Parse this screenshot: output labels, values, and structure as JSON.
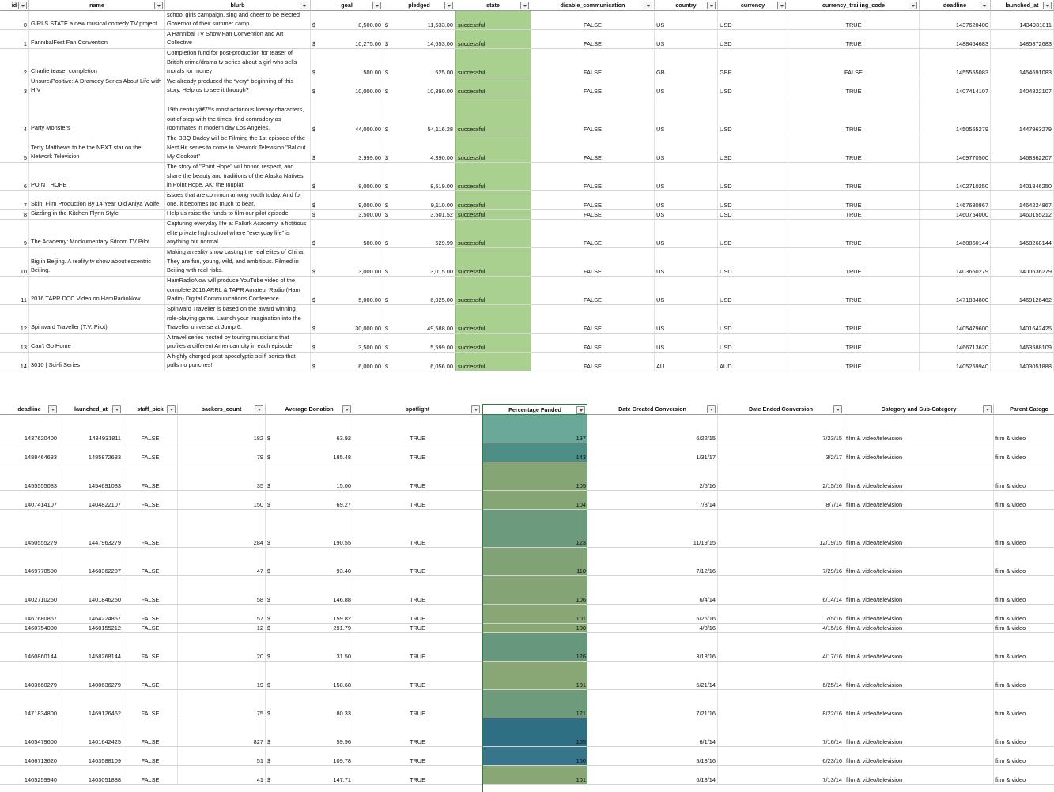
{
  "top_headers": [
    "id",
    "name",
    "blurb",
    "goal",
    "pledged",
    "state",
    "disable_communication",
    "country",
    "currency",
    "currency_trailing_code",
    "deadline",
    "launched_at"
  ],
  "bottom_headers": [
    "deadline",
    "launched_at",
    "staff_pick",
    "backers_count",
    "Average Donation",
    "spotlight",
    "Percentage Funded",
    "Date Created Conversion",
    "Date Ended Conversion",
    "Category and Sub-Category",
    "Parent Catego"
  ],
  "currency_symbol": "$",
  "rows": [
    {
      "id": "0",
      "name": "GIRLS STATE a new musical comedy TV project",
      "blurb": "In this new TV show \"All Politics is Vocal\" as high school girls campaign, sing and cheer to be elected Governor of their summer camp.",
      "goal": "8,500.00",
      "pledged": "11,633.00",
      "state": "successful",
      "disable_communication": "FALSE",
      "country": "US",
      "currency": "USD",
      "currency_trailing_code": "TRUE",
      "deadline": "1437620400",
      "launched_at": "1434931811",
      "staff_pick": "FALSE",
      "backers_count": "182",
      "avg_donation": "63.92",
      "spotlight": "TRUE",
      "pct_funded": "137",
      "pct_color": "#6aa99a",
      "date_created": "6/22/15",
      "date_ended": "7/23/15",
      "category": "film & video/television",
      "parent": "film & video"
    },
    {
      "id": "1",
      "name": "FannibalFest Fan Convention",
      "blurb": "A Hannibal TV Show Fan Convention and Art Collective",
      "goal": "10,275.00",
      "pledged": "14,653.00",
      "state": "successful",
      "disable_communication": "FALSE",
      "country": "US",
      "currency": "USD",
      "currency_trailing_code": "TRUE",
      "deadline": "1488464683",
      "launched_at": "1485872683",
      "staff_pick": "FALSE",
      "backers_count": "79",
      "avg_donation": "185.48",
      "spotlight": "TRUE",
      "pct_funded": "143",
      "pct_color": "#4d8f86",
      "date_created": "1/31/17",
      "date_ended": "3/2/17",
      "category": "film & video/television",
      "parent": "film & video"
    },
    {
      "id": "2",
      "name": "Charlie teaser completion",
      "blurb": "Completion fund for post-production for teaser of British crime/drama tv series about a girl who sells morals for money",
      "goal": "500.00",
      "pledged": "525.00",
      "state": "successful",
      "disable_communication": "FALSE",
      "country": "GB",
      "currency": "GBP",
      "currency_trailing_code": "FALSE",
      "deadline": "1455555083",
      "launched_at": "1454691083",
      "staff_pick": "FALSE",
      "backers_count": "35",
      "avg_donation": "15.00",
      "spotlight": "TRUE",
      "pct_funded": "105",
      "pct_color": "#86a575",
      "date_created": "2/5/16",
      "date_ended": "2/15/16",
      "category": "film & video/television",
      "parent": "film & video"
    },
    {
      "id": "3",
      "name": "Unsure/Positive: A Dramedy Series About Life with HIV",
      "blurb": "We already produced the *very* beginning of this story. Help us to see it through?",
      "goal": "10,000.00",
      "pledged": "10,390.00",
      "state": "successful",
      "disable_communication": "FALSE",
      "country": "US",
      "currency": "USD",
      "currency_trailing_code": "TRUE",
      "deadline": "1407414107",
      "launched_at": "1404822107",
      "staff_pick": "FALSE",
      "backers_count": "150",
      "avg_donation": "69.27",
      "spotlight": "TRUE",
      "pct_funded": "104",
      "pct_color": "#86a575",
      "date_created": "7/8/14",
      "date_ended": "8/7/14",
      "category": "film & video/television",
      "parent": "film & video"
    },
    {
      "id": "4",
      "name": "Party Monsters",
      "blurb": "19th centuryâ€™s most notorious literary characters, out of step with the times, find comradery as roommates in modern day Los Angeles.",
      "goal": "44,000.00",
      "pledged": "54,116.28",
      "state": "successful",
      "disable_communication": "FALSE",
      "country": "US",
      "currency": "USD",
      "currency_trailing_code": "TRUE",
      "deadline": "1450555279",
      "launched_at": "1447963279",
      "staff_pick": "FALSE",
      "backers_count": "284",
      "avg_donation": "190.55",
      "spotlight": "TRUE",
      "pct_funded": "123",
      "pct_color": "#6b9a7c",
      "date_created": "11/19/15",
      "date_ended": "12/19/15",
      "category": "film & video/television",
      "parent": "film & video"
    },
    {
      "id": "5",
      "name": "Terry Matthews to be the NEXT star on the Network Television",
      "blurb": "The BBQ Daddy will be Filming the 1st episode of the Next Hit series to come to Network Television \"Ballout My Cookout\"",
      "goal": "3,999.00",
      "pledged": "4,390.00",
      "state": "successful",
      "disable_communication": "FALSE",
      "country": "US",
      "currency": "USD",
      "currency_trailing_code": "TRUE",
      "deadline": "1469770500",
      "launched_at": "1468362207",
      "staff_pick": "FALSE",
      "backers_count": "47",
      "avg_donation": "93.40",
      "spotlight": "TRUE",
      "pct_funded": "110",
      "pct_color": "#80a275",
      "date_created": "7/12/16",
      "date_ended": "7/29/16",
      "category": "film & video/television",
      "parent": "film & video"
    },
    {
      "id": "6",
      "name": "POINT HOPE",
      "blurb": "The story of \"Point Hope\" will honor, respect, and share the beauty and traditions of the Alaska Natives in Point Hope, AK: the Inupiat",
      "goal": "8,000.00",
      "pledged": "8,519.00",
      "state": "successful",
      "disable_communication": "FALSE",
      "country": "US",
      "currency": "USD",
      "currency_trailing_code": "TRUE",
      "deadline": "1402710250",
      "launched_at": "1401846250",
      "staff_pick": "FALSE",
      "backers_count": "58",
      "avg_donation": "146.88",
      "spotlight": "TRUE",
      "pct_funded": "106",
      "pct_color": "#84a475",
      "date_created": "6/4/14",
      "date_ended": "6/14/14",
      "category": "film & video/television",
      "parent": "film & video"
    },
    {
      "id": "7",
      "name": "Skin: Film Production By 14 Year Old Aniya Wolfe",
      "blurb": "Secrets bond three unfortunate teens who are facing issues that are common among youth today. And for one, it becomes too much to bear.",
      "goal": "9,000.00",
      "pledged": "9,110.00",
      "state": "successful",
      "disable_communication": "FALSE",
      "country": "US",
      "currency": "USD",
      "currency_trailing_code": "TRUE",
      "deadline": "1467680867",
      "launched_at": "1464224867",
      "staff_pick": "FALSE",
      "backers_count": "57",
      "avg_donation": "159.82",
      "spotlight": "TRUE",
      "pct_funded": "101",
      "pct_color": "#88a774",
      "date_created": "5/26/16",
      "date_ended": "7/5/16",
      "category": "film & video/television",
      "parent": "film & video"
    },
    {
      "id": "8",
      "name": "Sizzling in the Kitchen Flynn Style",
      "blurb": "Help us raise the funds to film our pilot episode!",
      "goal": "3,500.00",
      "pledged": "3,501.52",
      "state": "successful",
      "disable_communication": "FALSE",
      "country": "US",
      "currency": "USD",
      "currency_trailing_code": "TRUE",
      "deadline": "1460754000",
      "launched_at": "1460155212",
      "staff_pick": "FALSE",
      "backers_count": "12",
      "avg_donation": "291.79",
      "spotlight": "TRUE",
      "pct_funded": "100",
      "pct_color": "#89a874",
      "date_created": "4/8/16",
      "date_ended": "4/15/16",
      "category": "film & video/television",
      "parent": "film & video"
    },
    {
      "id": "9",
      "name": "The Academy: Mockumentary Sitcom TV Pilot",
      "blurb": "Capturing everyday life at Falkirk Academy, a fictitious elite private high school where \"everyday life\" is anything but normal.",
      "goal": "500.00",
      "pledged": "629.99",
      "state": "successful",
      "disable_communication": "FALSE",
      "country": "US",
      "currency": "USD",
      "currency_trailing_code": "TRUE",
      "deadline": "1460860144",
      "launched_at": "1458268144",
      "staff_pick": "FALSE",
      "backers_count": "20",
      "avg_donation": "31.50",
      "spotlight": "TRUE",
      "pct_funded": "126",
      "pct_color": "#67977c",
      "date_created": "3/18/16",
      "date_ended": "4/17/16",
      "category": "film & video/television",
      "parent": "film & video"
    },
    {
      "id": "10",
      "name": "Big in Beijing. A reality tv show about eccentric Beijing.",
      "blurb": "Making a reality show casting the real elites of China. They are fun, young, wild, and ambitious. Filmed in Beijing with real risks.",
      "goal": "3,000.00",
      "pledged": "3,015.00",
      "state": "successful",
      "disable_communication": "FALSE",
      "country": "US",
      "currency": "USD",
      "currency_trailing_code": "TRUE",
      "deadline": "1403660279",
      "launched_at": "1400636279",
      "staff_pick": "FALSE",
      "backers_count": "19",
      "avg_donation": "158.68",
      "spotlight": "TRUE",
      "pct_funded": "101",
      "pct_color": "#88a774",
      "date_created": "5/21/14",
      "date_ended": "6/25/14",
      "category": "film & video/television",
      "parent": "film & video"
    },
    {
      "id": "11",
      "name": "2016 TAPR DCC Video on HamRadioNow",
      "blurb": "HamRadioNow will produce YouTube video of the complete 2016 ARRL & TAPR Amateur Radio (Ham Radio) Digital Communications Conference",
      "goal": "5,000.00",
      "pledged": "6,025.00",
      "state": "successful",
      "disable_communication": "FALSE",
      "country": "US",
      "currency": "USD",
      "currency_trailing_code": "TRUE",
      "deadline": "1471834800",
      "launched_at": "1469126462",
      "staff_pick": "FALSE",
      "backers_count": "75",
      "avg_donation": "80.33",
      "spotlight": "TRUE",
      "pct_funded": "121",
      "pct_color": "#6d9b7b",
      "date_created": "7/21/16",
      "date_ended": "8/22/16",
      "category": "film & video/television",
      "parent": "film & video"
    },
    {
      "id": "12",
      "name": "Spinward Traveller (T.V. Pilot)",
      "blurb": "Spinward Traveller is based on the award winning role-playing game. Launch your imagination into the Traveller universe at Jump 6.",
      "goal": "30,000.00",
      "pledged": "49,588.00",
      "state": "successful",
      "disable_communication": "FALSE",
      "country": "US",
      "currency": "USD",
      "currency_trailing_code": "TRUE",
      "deadline": "1405479600",
      "launched_at": "1401642425",
      "staff_pick": "FALSE",
      "backers_count": "827",
      "avg_donation": "59.96",
      "spotlight": "TRUE",
      "pct_funded": "165",
      "pct_color": "#2f6f84",
      "date_created": "6/1/14",
      "date_ended": "7/16/14",
      "category": "film & video/television",
      "parent": "film & video"
    },
    {
      "id": "13",
      "name": "Can't Go Home",
      "blurb": "A travel series hosted by touring musicians that profiles a different American city in each episode.",
      "goal": "3,500.00",
      "pledged": "5,599.00",
      "state": "successful",
      "disable_communication": "FALSE",
      "country": "US",
      "currency": "USD",
      "currency_trailing_code": "TRUE",
      "deadline": "1466713620",
      "launched_at": "1463588109",
      "staff_pick": "FALSE",
      "backers_count": "51",
      "avg_donation": "109.78",
      "spotlight": "TRUE",
      "pct_funded": "160",
      "pct_color": "#36758a",
      "date_created": "5/18/16",
      "date_ended": "6/23/16",
      "category": "film & video/television",
      "parent": "film & video"
    },
    {
      "id": "14",
      "name": "3010 | Sci-fi Series",
      "blurb": "A highly charged post apocalyptic sci fi series that pulls no punches!",
      "goal": "6,000.00",
      "pledged": "6,056.00",
      "state": "successful",
      "disable_communication": "FALSE",
      "country": "AU",
      "currency": "AUD",
      "currency_trailing_code": "TRUE",
      "deadline": "1405259940",
      "launched_at": "1403051888",
      "staff_pick": "FALSE",
      "backers_count": "41",
      "avg_donation": "147.71",
      "spotlight": "TRUE",
      "pct_funded": "101",
      "pct_color": "#88a774",
      "date_created": "6/18/14",
      "date_ended": "7/13/14",
      "category": "film & video/television",
      "parent": "film & video"
    }
  ],
  "colors": {
    "successful_fill": "#a9d08e",
    "selection_border": "#2f7a3a"
  }
}
